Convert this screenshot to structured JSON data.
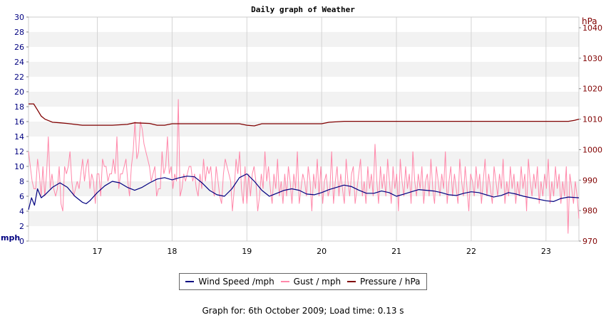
{
  "chart_data": {
    "type": "line",
    "title": "Daily graph of Weather",
    "y_left_label": "mph",
    "y_right_label": "hPa",
    "x_range": [
      16.08,
      23.44
    ],
    "x_ticks": [
      17,
      18,
      19,
      20,
      21,
      22,
      23
    ],
    "y_left_range": [
      0,
      30
    ],
    "y_left_ticks": [
      0,
      2,
      4,
      6,
      8,
      10,
      12,
      14,
      16,
      18,
      20,
      22,
      24,
      26,
      28,
      30
    ],
    "y_right_range": [
      970,
      1043.5
    ],
    "y_right_ticks": [
      970,
      980,
      990,
      1000,
      1010,
      1020,
      1030,
      1040
    ],
    "grid": true,
    "legend_position": "bottom",
    "colors": {
      "wind": "#000080",
      "gust": "#ff88aa",
      "pressure": "#800000",
      "band": "#f2f2f2"
    },
    "series": [
      {
        "name": "Wind Speed /mph",
        "axis": "left",
        "x": [
          16.08,
          16.12,
          16.16,
          16.2,
          16.25,
          16.3,
          16.4,
          16.5,
          16.6,
          16.7,
          16.8,
          16.85,
          16.9,
          17.0,
          17.1,
          17.2,
          17.3,
          17.4,
          17.5,
          17.6,
          17.7,
          17.8,
          17.9,
          18.0,
          18.1,
          18.2,
          18.3,
          18.4,
          18.5,
          18.6,
          18.7,
          18.8,
          18.9,
          19.0,
          19.1,
          19.2,
          19.3,
          19.4,
          19.5,
          19.6,
          19.7,
          19.8,
          19.9,
          20.0,
          20.1,
          20.2,
          20.3,
          20.4,
          20.5,
          20.6,
          20.7,
          20.8,
          20.9,
          21.0,
          21.1,
          21.2,
          21.3,
          21.4,
          21.5,
          21.6,
          21.7,
          21.8,
          21.9,
          22.0,
          22.1,
          22.2,
          22.3,
          22.4,
          22.5,
          22.6,
          22.7,
          22.8,
          22.9,
          23.0,
          23.1,
          23.2,
          23.3,
          23.44
        ],
        "values": [
          4.2,
          5.8,
          4.8,
          7.0,
          5.8,
          6.2,
          7.2,
          7.8,
          7.2,
          6.0,
          5.2,
          5.0,
          5.4,
          6.5,
          7.4,
          8.0,
          7.8,
          7.2,
          6.8,
          7.2,
          7.8,
          8.3,
          8.5,
          8.2,
          8.5,
          8.7,
          8.6,
          7.8,
          6.8,
          6.2,
          6.0,
          7.0,
          8.5,
          9.0,
          8.0,
          6.8,
          6.0,
          6.4,
          6.8,
          7.0,
          6.8,
          6.3,
          6.2,
          6.5,
          6.9,
          7.2,
          7.5,
          7.3,
          6.8,
          6.4,
          6.4,
          6.7,
          6.5,
          6.0,
          6.3,
          6.6,
          6.9,
          6.8,
          6.7,
          6.5,
          6.2,
          6.1,
          6.4,
          6.6,
          6.5,
          6.2,
          5.9,
          6.1,
          6.5,
          6.3,
          6.0,
          5.8,
          5.6,
          5.4,
          5.3,
          5.7,
          5.9,
          5.8
        ]
      },
      {
        "name": "Gust / mph",
        "axis": "left",
        "x0": 16.08,
        "x1": 23.44,
        "values": [
          12,
          10,
          8,
          7,
          7,
          11,
          9,
          6,
          10,
          6,
          9,
          14,
          7,
          9,
          7,
          6,
          7,
          10,
          5,
          4,
          10,
          9,
          10,
          12,
          8,
          6,
          7,
          8,
          7,
          9,
          11,
          8,
          10,
          11,
          7,
          9,
          8,
          5,
          9,
          9,
          6,
          11,
          10,
          10,
          8,
          9,
          9,
          11,
          9,
          14,
          7,
          9,
          9,
          10,
          11,
          8,
          6,
          10,
          12,
          16,
          11,
          12,
          16,
          15,
          13,
          12,
          11,
          10,
          8,
          9,
          10,
          6,
          7,
          7,
          12,
          9,
          10,
          14,
          9,
          10,
          7,
          9,
          8,
          19,
          6,
          7,
          9,
          8,
          9,
          10,
          10,
          8,
          9,
          7,
          6,
          9,
          7,
          11,
          8,
          10,
          9,
          10,
          7,
          6,
          10,
          8,
          6,
          5,
          9,
          11,
          10,
          9,
          8,
          4,
          7,
          11,
          9,
          12,
          7,
          5,
          10,
          5,
          9,
          6,
          9,
          10,
          8,
          4,
          6,
          9,
          7,
          12,
          8,
          10,
          7,
          5,
          9,
          7,
          11,
          6,
          8,
          5,
          9,
          6,
          10,
          8,
          5,
          9,
          7,
          12,
          5,
          7,
          9,
          8,
          6,
          10,
          8,
          4,
          9,
          7,
          11,
          6,
          10,
          5,
          8,
          9,
          6,
          7,
          12,
          5,
          8,
          10,
          6,
          9,
          7,
          5,
          11,
          8,
          6,
          9,
          10,
          5,
          7,
          9,
          11,
          6,
          8,
          5,
          10,
          7,
          9,
          6,
          13,
          8,
          5,
          10,
          7,
          9,
          6,
          11,
          8,
          5,
          10,
          7,
          9,
          4,
          11,
          8,
          6,
          10,
          7,
          9,
          5,
          12,
          8,
          6,
          9,
          7,
          10,
          5,
          8,
          9,
          6,
          11,
          7,
          5,
          10,
          8,
          6,
          9,
          7,
          12,
          5,
          8,
          10,
          6,
          9,
          7,
          5,
          11,
          8,
          6,
          10,
          7,
          4,
          9,
          8,
          6,
          10,
          7,
          9,
          5,
          8,
          11,
          6,
          9,
          7,
          5,
          10,
          8,
          6,
          9,
          7,
          11,
          5,
          8,
          6,
          10,
          7,
          9,
          5,
          8,
          6,
          10,
          7,
          9,
          4,
          11,
          8,
          6,
          9,
          7,
          10,
          5,
          8,
          6,
          9,
          7,
          11,
          5,
          8,
          6,
          10,
          7,
          9,
          5,
          8,
          6,
          10,
          1,
          9,
          7,
          5,
          8,
          6,
          3
        ]
      },
      {
        "name": "Pressure / hPa",
        "axis": "right",
        "x": [
          16.08,
          16.15,
          16.2,
          16.25,
          16.3,
          16.35,
          16.4,
          16.5,
          16.6,
          16.7,
          16.8,
          17.0,
          17.2,
          17.4,
          17.5,
          17.7,
          17.8,
          17.9,
          18.0,
          18.2,
          18.4,
          18.6,
          18.8,
          18.9,
          19.0,
          19.1,
          19.2,
          19.3,
          19.6,
          19.9,
          20.0,
          20.1,
          20.3,
          20.6,
          21.0,
          21.5,
          22.0,
          22.5,
          23.0,
          23.3,
          23.38,
          23.44
        ],
        "values": [
          1015,
          1015,
          1013,
          1011,
          1010,
          1009.5,
          1009,
          1008.8,
          1008.6,
          1008.3,
          1008.0,
          1008.0,
          1008.0,
          1008.3,
          1008.8,
          1008.6,
          1008.0,
          1008.0,
          1008.5,
          1008.5,
          1008.5,
          1008.5,
          1008.5,
          1008.5,
          1008.0,
          1007.8,
          1008.5,
          1008.5,
          1008.5,
          1008.5,
          1008.5,
          1009.0,
          1009.3,
          1009.3,
          1009.3,
          1009.3,
          1009.3,
          1009.3,
          1009.3,
          1009.3,
          1009.6,
          1010.0
        ]
      }
    ]
  },
  "footer": {
    "text": "Graph for: 6th October 2009; Load time: 0.13 s"
  }
}
